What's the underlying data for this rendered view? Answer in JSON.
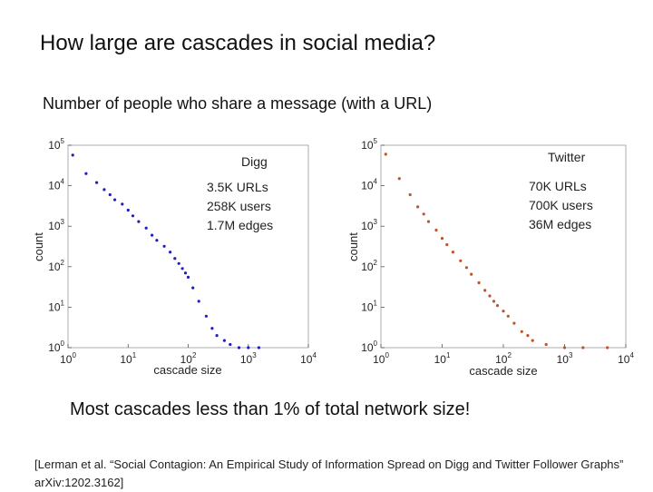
{
  "slide": {
    "title": "How large are cascades in social media?",
    "subtitle": "Number of people who share a message (with a URL)",
    "conclusion": "Most cascades less than 1% of total network size!",
    "citation": "[Lerman et al. “Social Contagion: An Empirical Study of Information Spread on Digg and Twitter Follower Graphs” arXiv:1202.3162]"
  },
  "chart_data": [
    {
      "type": "scatter",
      "title": "Digg",
      "xlabel": "cascade size",
      "ylabel": "count",
      "xscale": "log",
      "yscale": "log",
      "xlim": [
        1,
        10000
      ],
      "ylim": [
        1,
        100000
      ],
      "x_ticks": [
        "10^0",
        "10^1",
        "10^2",
        "10^3",
        "10^4"
      ],
      "y_ticks": [
        "10^0",
        "10^1",
        "10^2",
        "10^3",
        "10^4",
        "10^5"
      ],
      "color": "#1f1fbf",
      "annotations": [
        "3.5K URLs",
        "258K users",
        "1.7M edges"
      ],
      "series": [
        {
          "name": "Digg",
          "points": [
            [
              1.2,
              57000
            ],
            [
              2,
              20000
            ],
            [
              3,
              12000
            ],
            [
              4,
              8000
            ],
            [
              5,
              6000
            ],
            [
              6,
              4500
            ],
            [
              8,
              3500
            ],
            [
              10,
              2500
            ],
            [
              12,
              1800
            ],
            [
              15,
              1300
            ],
            [
              20,
              900
            ],
            [
              25,
              600
            ],
            [
              30,
              450
            ],
            [
              40,
              320
            ],
            [
              50,
              230
            ],
            [
              60,
              160
            ],
            [
              70,
              120
            ],
            [
              80,
              90
            ],
            [
              90,
              70
            ],
            [
              100,
              55
            ],
            [
              120,
              30
            ],
            [
              150,
              14
            ],
            [
              200,
              6
            ],
            [
              250,
              3
            ],
            [
              300,
              2
            ],
            [
              400,
              1.5
            ],
            [
              500,
              1.2
            ],
            [
              700,
              1
            ],
            [
              1000,
              1
            ],
            [
              1500,
              1
            ]
          ]
        }
      ]
    },
    {
      "type": "scatter",
      "title": "Twitter",
      "xlabel": "cascade size",
      "ylabel": "count",
      "xscale": "log",
      "yscale": "log",
      "xlim": [
        1,
        10000
      ],
      "ylim": [
        1,
        100000
      ],
      "x_ticks": [
        "10^0",
        "10^1",
        "10^2",
        "10^3",
        "10^4"
      ],
      "y_ticks": [
        "10^0",
        "10^1",
        "10^2",
        "10^3",
        "10^4",
        "10^5"
      ],
      "color": "#c0522b",
      "annotations": [
        "70K URLs",
        "700K users",
        "36M edges"
      ],
      "series": [
        {
          "name": "Twitter",
          "points": [
            [
              1.2,
              60000
            ],
            [
              2,
              15000
            ],
            [
              3,
              6000
            ],
            [
              4,
              3000
            ],
            [
              5,
              2000
            ],
            [
              6,
              1300
            ],
            [
              8,
              800
            ],
            [
              10,
              500
            ],
            [
              12,
              350
            ],
            [
              15,
              230
            ],
            [
              20,
              140
            ],
            [
              25,
              95
            ],
            [
              30,
              65
            ],
            [
              40,
              40
            ],
            [
              50,
              26
            ],
            [
              60,
              19
            ],
            [
              70,
              14
            ],
            [
              80,
              11
            ],
            [
              100,
              8
            ],
            [
              120,
              6
            ],
            [
              150,
              4
            ],
            [
              200,
              2.5
            ],
            [
              250,
              2
            ],
            [
              300,
              1.5
            ],
            [
              500,
              1.2
            ],
            [
              1000,
              1
            ],
            [
              2000,
              1
            ],
            [
              5000,
              1
            ]
          ]
        }
      ]
    }
  ]
}
